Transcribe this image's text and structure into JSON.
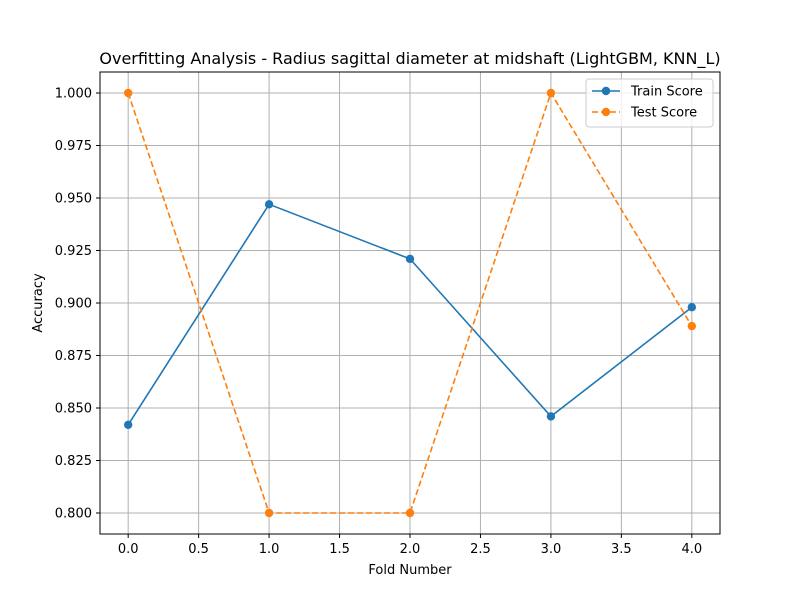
{
  "chart_data": {
    "type": "line",
    "title": "Overfitting Analysis - Radius sagittal diameter at midshaft (LightGBM, KNN_L)",
    "xlabel": "Fold Number",
    "ylabel": "Accuracy",
    "xlim": [
      -0.2,
      4.2
    ],
    "ylim": [
      0.79,
      1.01
    ],
    "xticks": [
      0.0,
      0.5,
      1.0,
      1.5,
      2.0,
      2.5,
      3.0,
      3.5,
      4.0
    ],
    "xtick_labels": [
      "0.0",
      "0.5",
      "1.0",
      "1.5",
      "2.0",
      "2.5",
      "3.0",
      "3.5",
      "4.0"
    ],
    "yticks": [
      0.8,
      0.825,
      0.85,
      0.875,
      0.9,
      0.925,
      0.95,
      0.975,
      1.0
    ],
    "ytick_labels": [
      "0.800",
      "0.825",
      "0.850",
      "0.875",
      "0.900",
      "0.925",
      "0.950",
      "0.975",
      "1.000"
    ],
    "grid": true,
    "legend_position": "top-right",
    "x": [
      0,
      1,
      2,
      3,
      4
    ],
    "series": [
      {
        "name": "Train Score",
        "values": [
          0.842,
          0.947,
          0.921,
          0.846,
          0.898
        ],
        "color": "#1f77b4",
        "linestyle": "solid",
        "marker": "circle"
      },
      {
        "name": "Test Score",
        "values": [
          1.0,
          0.8,
          0.8,
          1.0,
          0.889
        ],
        "color": "#ff7f0e",
        "linestyle": "dashed",
        "marker": "circle"
      }
    ]
  }
}
